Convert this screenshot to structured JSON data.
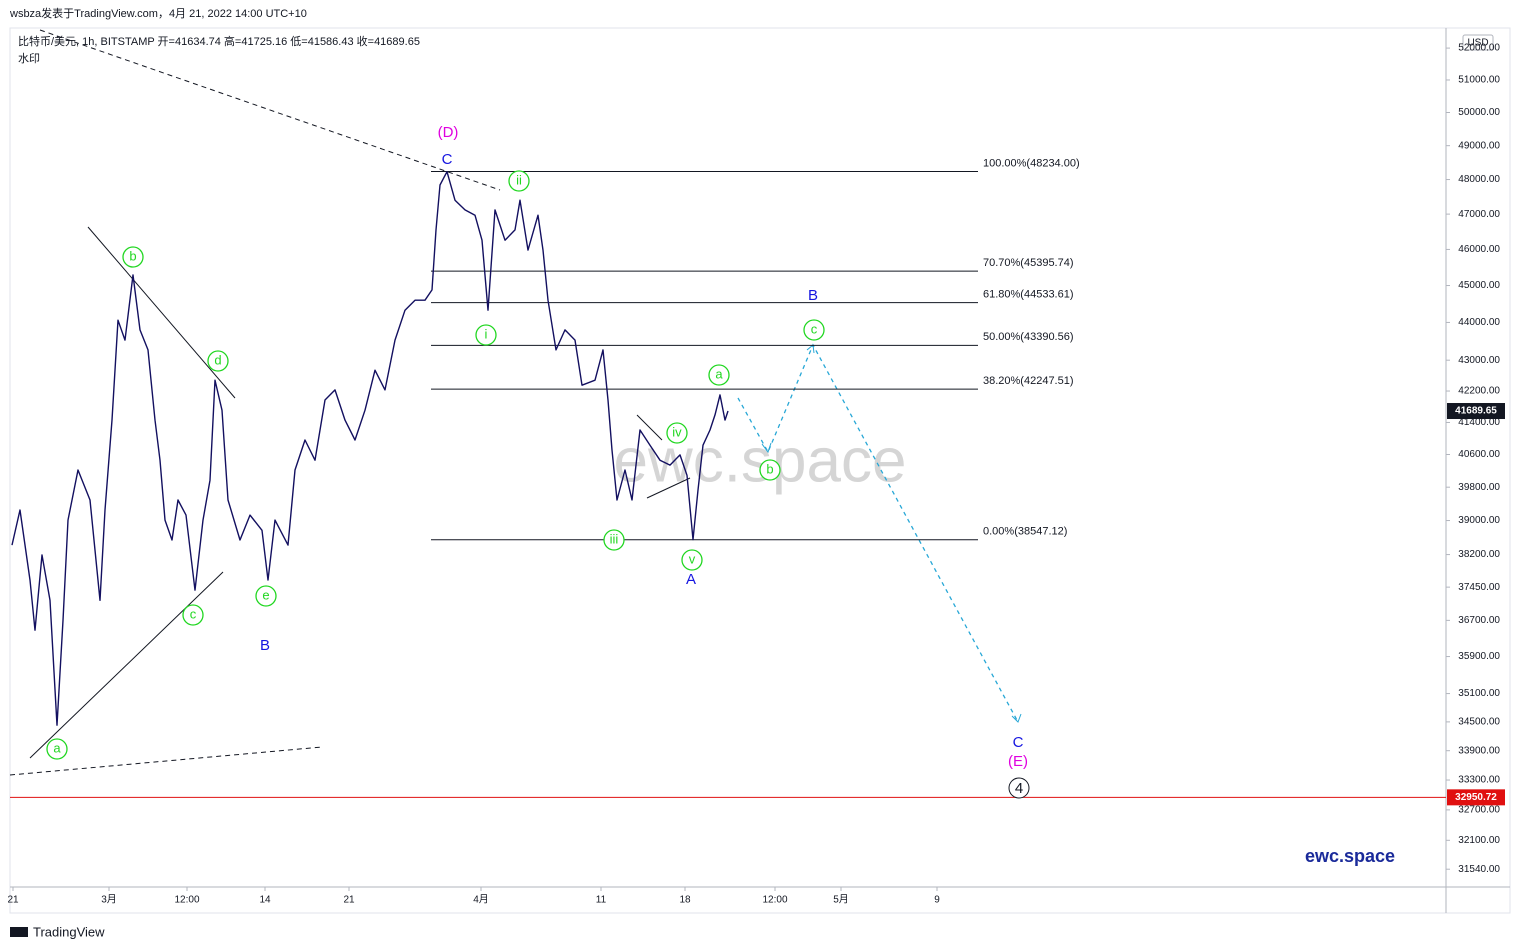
{
  "header": {
    "published": "wsbza发表于TradingView.com，4月 21, 2022 14:00 UTC+10",
    "symbol_line": "比特币/美元, 1h, BITSTAMP  开=41634.74  高=41725.16  低=41586.43  收=41689.65",
    "watermark_label": "水印",
    "currency": "USD"
  },
  "chart_data": {
    "type": "line",
    "log_scale": true,
    "x": [
      "2022-02-20T22:00",
      "2022-02-21T14:00",
      "2022-02-22T10:00",
      "2022-02-22T20:00",
      "2022-02-23T10:00",
      "2022-02-24T02:00",
      "2022-02-24T16:00",
      "2022-02-25T04:00",
      "2022-02-25T14:00",
      "2022-02-26T10:00",
      "2022-02-27T10:00",
      "2022-02-28T06:00",
      "2022-02-28T16:00",
      "2022-03-01T06:00",
      "2022-03-01T18:00",
      "2022-03-02T08:00",
      "2022-03-03T00:00",
      "2022-03-03T14:00",
      "2022-03-04T06:00",
      "2022-03-04T20:00",
      "2022-03-05T06:00",
      "2022-03-05T16:00",
      "2022-03-06T06:00",
      "2022-03-06T18:00",
      "2022-03-07T10:00",
      "2022-03-08T04:00",
      "2022-03-08T20:00",
      "2022-03-09T10:00",
      "2022-03-09T20:00",
      "2022-03-10T10:00",
      "2022-03-10T22:00",
      "2022-03-11T22:00",
      "2022-03-12T18:00",
      "2022-03-13T18:00",
      "2022-03-14T06:00",
      "2022-03-14T20:00",
      "2022-03-15T22:00",
      "2022-03-16T12:00",
      "2022-03-17T08:00",
      "2022-03-18T04:00",
      "2022-03-19T00:00",
      "2022-03-19T20:00",
      "2022-03-20T16:00",
      "2022-03-21T12:00",
      "2022-03-22T08:00",
      "2022-03-23T04:00",
      "2022-03-24T00:00",
      "2022-03-24T20:00",
      "2022-03-25T16:00",
      "2022-03-26T12:00",
      "2022-03-27T08:00",
      "2022-03-27T22:00",
      "2022-03-28T06:00",
      "2022-03-28T14:00",
      "2022-03-29T04:00",
      "2022-03-29T20:00",
      "2022-03-30T16:00",
      "2022-03-31T12:00",
      "2022-04-01T02:00",
      "2022-04-01T14:00",
      "2022-04-02T04:00",
      "2022-04-03T00:00",
      "2022-04-03T20:00",
      "2022-04-04T06:00",
      "2022-04-04T22:00",
      "2022-04-05T18:00",
      "2022-04-06T04:00",
      "2022-04-06T14:00",
      "2022-04-07T06:00",
      "2022-04-08T00:00",
      "2022-04-08T20:00",
      "2022-04-09T10:00",
      "2022-04-10T12:00",
      "2022-04-11T04:00",
      "2022-04-11T14:00",
      "2022-04-11T22:00",
      "2022-04-12T08:00",
      "2022-04-13T00:00",
      "2022-04-13T14:00",
      "2022-04-14T06:00",
      "2022-04-15T02:00",
      "2022-04-15T22:00",
      "2022-04-16T18:00",
      "2022-04-17T14:00",
      "2022-04-18T04:00",
      "2022-04-18T16:00",
      "2022-04-19T02:00",
      "2022-04-19T12:00",
      "2022-04-20T02:00",
      "2022-04-20T12:00",
      "2022-04-20T22:00",
      "2022-04-21T08:00",
      "2022-04-21T14:00"
    ],
    "series": [
      {
        "color": "#131060",
        "values": [
          38420,
          39250,
          37610,
          36480,
          38190,
          37150,
          34430,
          36700,
          39010,
          40220,
          39490,
          37150,
          39250,
          41460,
          44060,
          43530,
          45290,
          43800,
          43270,
          41460,
          40460,
          39010,
          38540,
          39490,
          39130,
          37380,
          39010,
          39970,
          42480,
          41710,
          39490,
          38540,
          39130,
          38770,
          37610,
          39010,
          38420,
          40220,
          40960,
          40460,
          41970,
          42230,
          41460,
          40960,
          41710,
          42740,
          42230,
          43530,
          44330,
          44600,
          44600,
          44880,
          46550,
          47840,
          48230,
          47400,
          47120,
          46970,
          46260,
          44330,
          47120,
          46260,
          46550,
          47400,
          45980,
          46970,
          45980,
          44600,
          43270,
          43800,
          43530,
          42350,
          42480,
          43270,
          41970,
          40710,
          39490,
          40220,
          39490,
          41210,
          40830,
          40460,
          40340,
          40590,
          40090,
          38550,
          39730,
          40830,
          41210,
          41590,
          42100,
          41460,
          41689.65
        ]
      }
    ],
    "xlim": [
      "2022-02-20T18:00",
      "2022-06-20T10:00"
    ],
    "xticks": [
      {
        "value": "2022-02-21",
        "label": "21"
      },
      {
        "value": "2022-03-01",
        "label": "3月"
      },
      {
        "value": "2022-03-07T12:00",
        "label": "12:00"
      },
      {
        "value": "2022-03-14",
        "label": "14"
      },
      {
        "value": "2022-03-21",
        "label": "21"
      },
      {
        "value": "2022-04-01",
        "label": "4月"
      },
      {
        "value": "2022-04-11",
        "label": "11"
      },
      {
        "value": "2022-04-18",
        "label": "18"
      },
      {
        "value": "2022-04-25T12:00",
        "label": "12:00"
      },
      {
        "value": "2022-05-01",
        "label": "5月"
      },
      {
        "value": "2022-05-09",
        "label": "9"
      }
    ],
    "ylim": [
      31200,
      52640
    ],
    "yticks": [
      {
        "value": 52000,
        "label": "52000.00"
      },
      {
        "value": 51000,
        "label": "51000.00"
      },
      {
        "value": 50000,
        "label": "50000.00"
      },
      {
        "value": 49000,
        "label": "49000.00"
      },
      {
        "value": 48000,
        "label": "48000.00"
      },
      {
        "value": 47000,
        "label": "47000.00"
      },
      {
        "value": 46000,
        "label": "46000.00"
      },
      {
        "value": 45000,
        "label": "45000.00"
      },
      {
        "value": 44000,
        "label": "44000.00"
      },
      {
        "value": 43000,
        "label": "43000.00"
      },
      {
        "value": 42200,
        "label": "42200.00"
      },
      {
        "value": 41400,
        "label": "41400.00"
      },
      {
        "value": 40600,
        "label": "40600.00"
      },
      {
        "value": 39800,
        "label": "39800.00"
      },
      {
        "value": 39000,
        "label": "39000.00"
      },
      {
        "value": 38200,
        "label": "38200.00"
      },
      {
        "value": 37450,
        "label": "37450.00"
      },
      {
        "value": 36700,
        "label": "36700.00"
      },
      {
        "value": 35900,
        "label": "35900.00"
      },
      {
        "value": 35100,
        "label": "35100.00"
      },
      {
        "value": 34500,
        "label": "34500.00"
      },
      {
        "value": 33900,
        "label": "33900.00"
      },
      {
        "value": 33300,
        "label": "33300.00"
      },
      {
        "value": 32700,
        "label": "32700.00"
      },
      {
        "value": 32100,
        "label": "32100.00"
      },
      {
        "value": 31540,
        "label": "31540.00"
      }
    ],
    "fib_levels": [
      {
        "value": 48234,
        "label": "100.00%(48234.00)"
      },
      {
        "value": 45395.74,
        "label": "70.70%(45395.74)"
      },
      {
        "value": 44533.61,
        "label": "61.80%(44533.61)"
      },
      {
        "value": 43390.56,
        "label": "50.00%(43390.56)"
      },
      {
        "value": 42247.51,
        "label": "38.20%(42247.51)"
      },
      {
        "value": 38547.12,
        "label": "0.00%(38547.12)"
      }
    ],
    "fib_color": "#131722",
    "last_price": 41689.65,
    "last_price_color": "#131722",
    "support_level": 32950.72,
    "support_color": "#e01010",
    "wave_labels": [
      "(D)",
      "C",
      "ii",
      "b",
      "d",
      "i",
      "B",
      "c",
      "a",
      "iv",
      "b",
      "iii",
      "v",
      "A",
      "c",
      "e",
      "B",
      "a",
      "C",
      "(E)",
      "4"
    ],
    "watermark": "ewc.space"
  },
  "footer": {
    "brand": "ewc.space",
    "logo": "TradingView"
  }
}
